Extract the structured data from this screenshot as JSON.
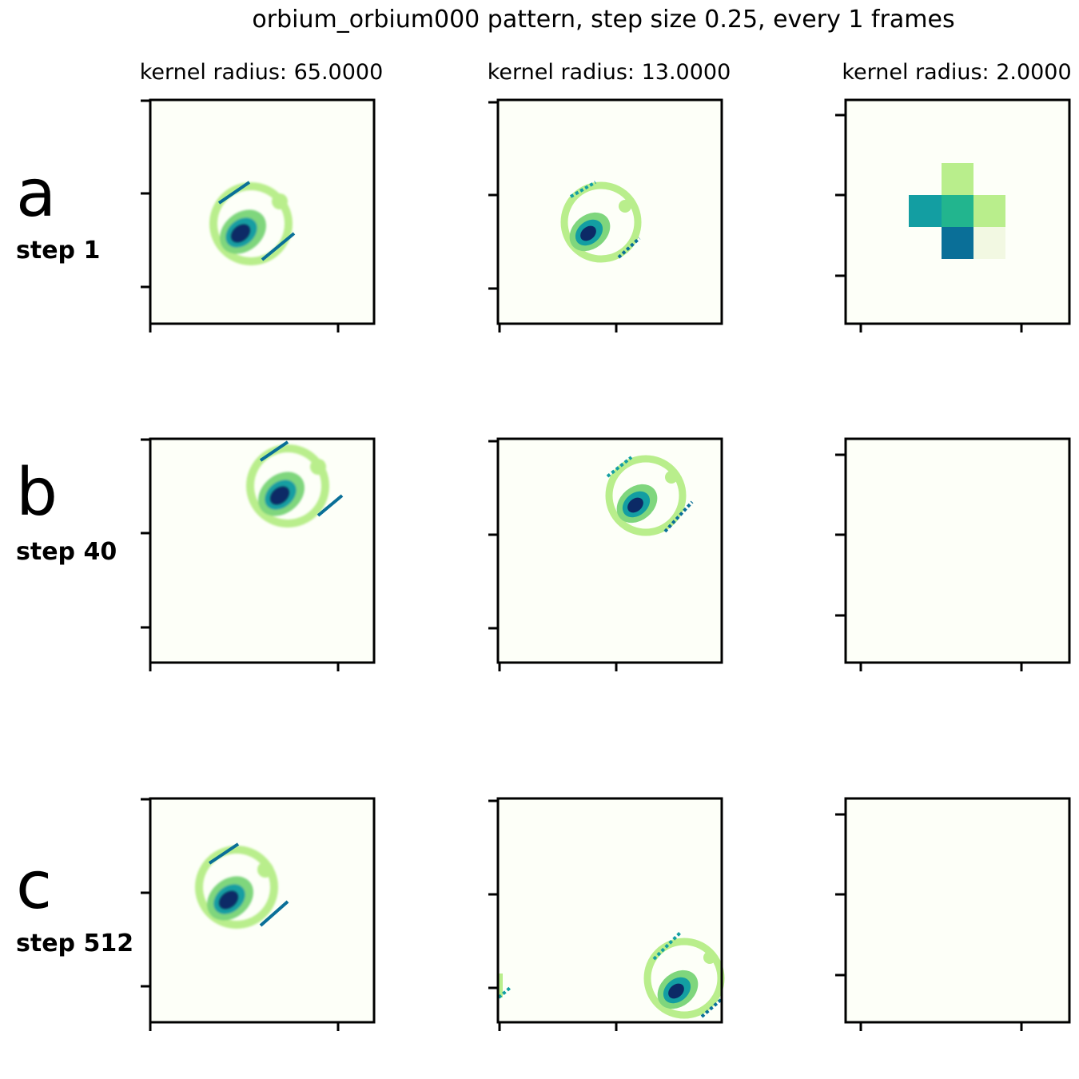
{
  "figure": {
    "title": "orbium_orbium000 pattern, step size 0.25, every 1 frames"
  },
  "columns": [
    {
      "title": "kernel radius: 65.0000"
    },
    {
      "title": "kernel radius: 13.0000"
    },
    {
      "title": "kernel radius: 2.0000"
    }
  ],
  "rows": [
    {
      "letter": "a",
      "step": "step 1"
    },
    {
      "letter": "b",
      "step": "step 40"
    },
    {
      "letter": "c",
      "step": "step 512"
    }
  ],
  "colors": {
    "background": "#fdfff8",
    "light_green": "#b9ee8c",
    "mid_green": "#7fd67d",
    "teal": "#139ea2",
    "teal_green": "#22b58e",
    "dark_teal": "#0a6f98",
    "navy": "#0c2a66",
    "pale": "#f2f8e2",
    "frame": "#000000"
  }
}
